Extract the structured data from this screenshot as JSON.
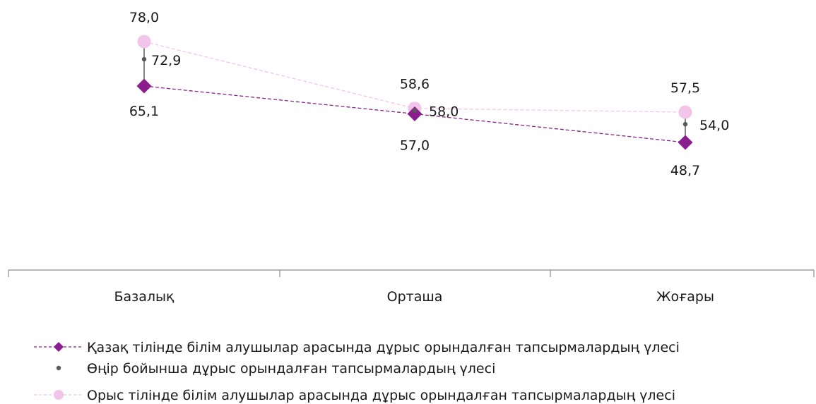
{
  "chart_data": {
    "type": "line",
    "categories": [
      "Базалық",
      "Орташа",
      "Жоғары"
    ],
    "series": [
      {
        "name": "Қазақ тілінде білім алушылар арасында дұрыс орындалған тапсырмалардың үлесі",
        "values": [
          65.1,
          57.0,
          48.7
        ],
        "labels": [
          "65,1",
          "57,0",
          "48,7"
        ],
        "color": "#8B1E8F",
        "marker": "diamond",
        "line": "dashed"
      },
      {
        "name": "Өңір бойынша дұрыс орындалған тапсырмалардың үлесі",
        "values": [
          72.9,
          58.0,
          54.0
        ],
        "labels": [
          "72,9",
          "58,0",
          "54,0"
        ],
        "color": "#595959",
        "marker": "dot",
        "line": "none"
      },
      {
        "name": "Орыс тілінде білім алушылар арасында дұрыс орындалған тапсырмалардың үлесі",
        "values": [
          78.0,
          58.6,
          57.5
        ],
        "labels": [
          "78,0",
          "58,6",
          "57,5"
        ],
        "color": "#F2C4E9",
        "marker": "circle",
        "line": "dashed"
      }
    ],
    "drop_lines": true,
    "grid": false,
    "legend_position": "bottom"
  }
}
